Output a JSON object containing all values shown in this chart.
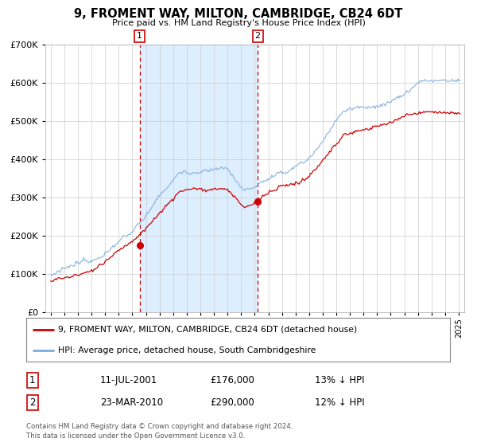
{
  "title": "9, FROMENT WAY, MILTON, CAMBRIDGE, CB24 6DT",
  "subtitle": "Price paid vs. HM Land Registry's House Price Index (HPI)",
  "legend_line1": "9, FROMENT WAY, MILTON, CAMBRIDGE, CB24 6DT (detached house)",
  "legend_line2": "HPI: Average price, detached house, South Cambridgeshire",
  "sale1_date": "11-JUL-2001",
  "sale1_price": "£176,000",
  "sale1_hpi": "13% ↓ HPI",
  "sale2_date": "23-MAR-2010",
  "sale2_price": "£290,000",
  "sale2_hpi": "12% ↓ HPI",
  "footer1": "Contains HM Land Registry data © Crown copyright and database right 2024.",
  "footer2": "This data is licensed under the Open Government Licence v3.0.",
  "red_color": "#cc0000",
  "blue_color": "#7aaadd",
  "shade_color": "#ddeeff",
  "grid_color": "#cccccc",
  "bg_color": "#ffffff",
  "sale1_x": 2001.54,
  "sale2_x": 2010.22,
  "ylim_min": 0,
  "ylim_max": 700000,
  "xlim_min": 1994.6,
  "xlim_max": 2025.4
}
